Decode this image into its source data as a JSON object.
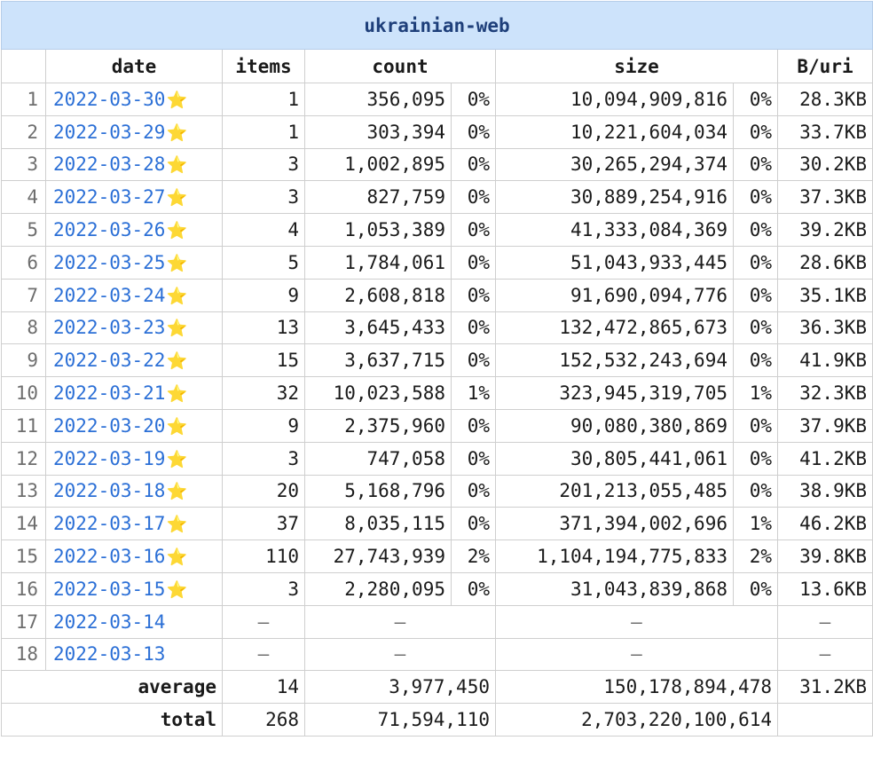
{
  "table_title": "ukrainian-web",
  "columns": {
    "date": "date",
    "items": "items",
    "count": "count",
    "size": "size",
    "b_per_uri": "B/uri"
  },
  "star_icon": "star-icon",
  "rows": [
    {
      "idx": "1",
      "date": "2022-03-30",
      "star": "⭐",
      "items": "1",
      "count": "356,095",
      "count_pct": "0%",
      "size": "10,094,909,816",
      "size_pct": "0%",
      "bpu": "28.3KB"
    },
    {
      "idx": "2",
      "date": "2022-03-29",
      "star": "⭐",
      "items": "1",
      "count": "303,394",
      "count_pct": "0%",
      "size": "10,221,604,034",
      "size_pct": "0%",
      "bpu": "33.7KB"
    },
    {
      "idx": "3",
      "date": "2022-03-28",
      "star": "⭐",
      "items": "3",
      "count": "1,002,895",
      "count_pct": "0%",
      "size": "30,265,294,374",
      "size_pct": "0%",
      "bpu": "30.2KB"
    },
    {
      "idx": "4",
      "date": "2022-03-27",
      "star": "⭐",
      "items": "3",
      "count": "827,759",
      "count_pct": "0%",
      "size": "30,889,254,916",
      "size_pct": "0%",
      "bpu": "37.3KB"
    },
    {
      "idx": "5",
      "date": "2022-03-26",
      "star": "⭐",
      "items": "4",
      "count": "1,053,389",
      "count_pct": "0%",
      "size": "41,333,084,369",
      "size_pct": "0%",
      "bpu": "39.2KB"
    },
    {
      "idx": "6",
      "date": "2022-03-25",
      "star": "⭐",
      "items": "5",
      "count": "1,784,061",
      "count_pct": "0%",
      "size": "51,043,933,445",
      "size_pct": "0%",
      "bpu": "28.6KB"
    },
    {
      "idx": "7",
      "date": "2022-03-24",
      "star": "⭐",
      "items": "9",
      "count": "2,608,818",
      "count_pct": "0%",
      "size": "91,690,094,776",
      "size_pct": "0%",
      "bpu": "35.1KB"
    },
    {
      "idx": "8",
      "date": "2022-03-23",
      "star": "⭐",
      "items": "13",
      "count": "3,645,433",
      "count_pct": "0%",
      "size": "132,472,865,673",
      "size_pct": "0%",
      "bpu": "36.3KB"
    },
    {
      "idx": "9",
      "date": "2022-03-22",
      "star": "⭐",
      "items": "15",
      "count": "3,637,715",
      "count_pct": "0%",
      "size": "152,532,243,694",
      "size_pct": "0%",
      "bpu": "41.9KB"
    },
    {
      "idx": "10",
      "date": "2022-03-21",
      "star": "⭐",
      "items": "32",
      "count": "10,023,588",
      "count_pct": "1%",
      "size": "323,945,319,705",
      "size_pct": "1%",
      "bpu": "32.3KB"
    },
    {
      "idx": "11",
      "date": "2022-03-20",
      "star": "⭐",
      "items": "9",
      "count": "2,375,960",
      "count_pct": "0%",
      "size": "90,080,380,869",
      "size_pct": "0%",
      "bpu": "37.9KB"
    },
    {
      "idx": "12",
      "date": "2022-03-19",
      "star": "⭐",
      "items": "3",
      "count": "747,058",
      "count_pct": "0%",
      "size": "30,805,441,061",
      "size_pct": "0%",
      "bpu": "41.2KB"
    },
    {
      "idx": "13",
      "date": "2022-03-18",
      "star": "⭐",
      "items": "20",
      "count": "5,168,796",
      "count_pct": "0%",
      "size": "201,213,055,485",
      "size_pct": "0%",
      "bpu": "38.9KB"
    },
    {
      "idx": "14",
      "date": "2022-03-17",
      "star": "⭐",
      "items": "37",
      "count": "8,035,115",
      "count_pct": "0%",
      "size": "371,394,002,696",
      "size_pct": "1%",
      "bpu": "46.2KB"
    },
    {
      "idx": "15",
      "date": "2022-03-16",
      "star": "⭐",
      "items": "110",
      "count": "27,743,939",
      "count_pct": "2%",
      "size": "1,104,194,775,833",
      "size_pct": "2%",
      "bpu": "39.8KB"
    },
    {
      "idx": "16",
      "date": "2022-03-15",
      "star": "⭐",
      "items": "3",
      "count": "2,280,095",
      "count_pct": "0%",
      "size": "31,043,839,868",
      "size_pct": "0%",
      "bpu": "13.6KB"
    }
  ],
  "empty_rows": [
    {
      "idx": "17",
      "date": "2022-03-14",
      "dash": "–"
    },
    {
      "idx": "18",
      "date": "2022-03-13",
      "dash": "–"
    }
  ],
  "average": {
    "label": "average",
    "items": "14",
    "count": "3,977,450",
    "size": "150,178,894,478",
    "bpu": "31.2KB"
  },
  "total": {
    "label": "total",
    "items": "268",
    "count": "71,594,110",
    "size": "2,703,220,100,614",
    "bpu": ""
  }
}
